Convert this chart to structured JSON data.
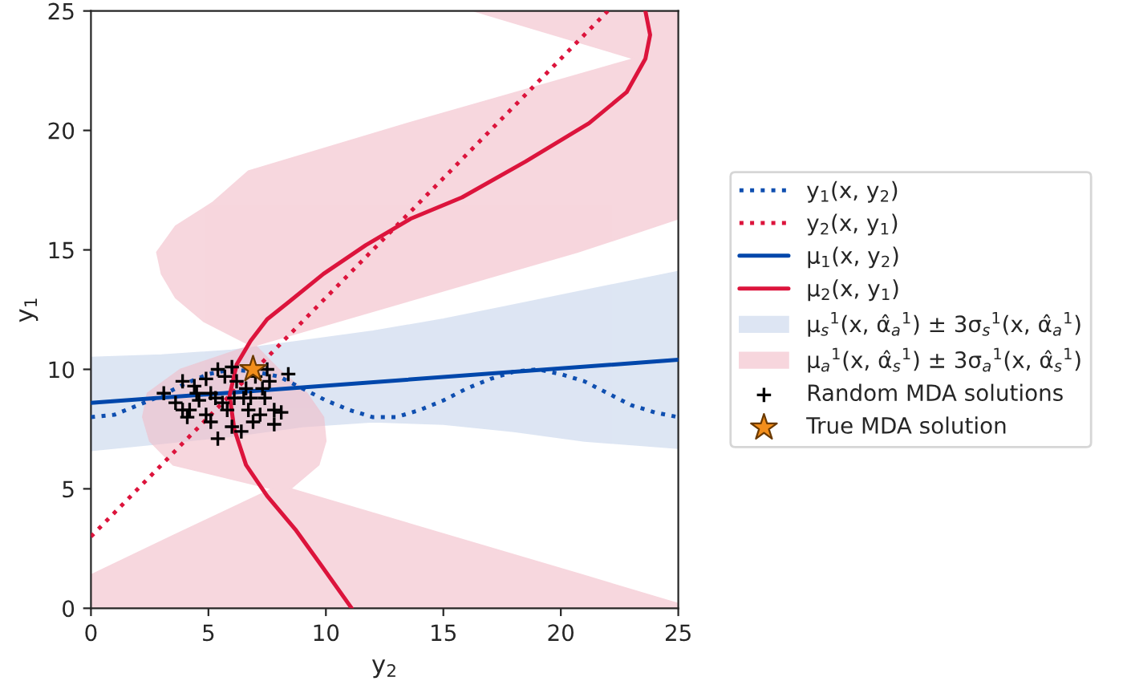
{
  "chart_data": {
    "type": "line",
    "xlabel": "y$_{2}$",
    "ylabel": "y$_{1}$",
    "xlim": [
      0,
      25
    ],
    "ylim": [
      0,
      25
    ],
    "xticks": [
      0,
      5,
      10,
      15,
      20,
      25
    ],
    "yticks": [
      0,
      5,
      10,
      15,
      20,
      25
    ],
    "grid": false,
    "legend": "right",
    "series": [
      {
        "name": "y$_{1}$(x, y$_{2}$)",
        "line_style": "dotted",
        "color": "#0f4fb0",
        "x": [
          0,
          1,
          2,
          3,
          4,
          5,
          6,
          7,
          8,
          9,
          10,
          11,
          12,
          13,
          14,
          15,
          16,
          17,
          18,
          19,
          20,
          21,
          22,
          23,
          24,
          25
        ],
        "values": [
          8.0,
          8.1,
          8.5,
          8.9,
          9.4,
          9.8,
          10.0,
          9.9,
          9.7,
          9.2,
          8.7,
          8.3,
          8.0,
          8.0,
          8.3,
          8.7,
          9.2,
          9.6,
          9.9,
          10.0,
          9.8,
          9.5,
          9.0,
          8.5,
          8.2,
          8.0
        ]
      },
      {
        "name": "y$_{2}$(x, y$_{1}$)",
        "line_style": "dotted",
        "color": "#dc143c",
        "x": [
          0,
          22
        ],
        "values": [
          3.0,
          25.0
        ]
      },
      {
        "name": "μ$_{1}$(x, y$_{2}$)",
        "line_style": "solid",
        "color": "#0047ab",
        "x": [
          0,
          25
        ],
        "values": [
          8.6,
          10.4
        ]
      },
      {
        "name": "μ$_{2}$(x, y$_{1}$)",
        "line_style": "solid",
        "color": "#dc143c",
        "x": [
          11.1,
          9.8,
          8.7,
          7.5,
          6.6,
          6.1,
          5.9,
          6.2,
          6.8,
          7.5,
          8.4,
          9.9,
          11.7,
          13.6,
          15.8,
          18.5,
          21.2,
          22.8,
          23.6,
          23.8,
          23.6
        ],
        "values": [
          0.0,
          1.8,
          3.3,
          4.7,
          6.0,
          7.5,
          8.9,
          10.2,
          11.2,
          12.1,
          12.8,
          14.0,
          15.2,
          16.3,
          17.2,
          18.7,
          20.3,
          21.6,
          23.0,
          24.0,
          25.0
        ]
      },
      {
        "name": "μ$_{s}$$^{1}$(x, α̂$_{a}$$^{1}$) ± 3σ$_{s}$$^{1}$(x, α̂$_{a}$$^{1}$)",
        "type": "area",
        "color": "#c7d5ec",
        "x": [
          0,
          3,
          6,
          9,
          12,
          15,
          18,
          21,
          25,
          25,
          21,
          18,
          15,
          12,
          9,
          6,
          3,
          0
        ],
        "values": [
          6.6,
          6.9,
          7.2,
          7.6,
          7.8,
          7.7,
          7.4,
          7.0,
          6.7,
          14.1,
          13.3,
          12.7,
          12.1,
          11.6,
          11.2,
          10.8,
          10.6,
          10.5
        ]
      },
      {
        "name": "μ$_{a}$$^{1}$(x, α̂$_{s}$$^{1}$) ± 3σ$_{a}$$^{1}$(x, α̂$_{s}$$^{1}$)",
        "type": "area",
        "color": "#f2bcc8",
        "x": [
          0,
          0,
          3.4,
          7.7,
          3.5,
          2.5,
          2.2,
          2.4,
          3.8,
          6.8,
          4.8,
          3.6,
          3.0,
          2.8,
          3.6,
          5.2,
          6.7,
          13.5,
          23.1,
          19.7,
          16.3,
          25,
          25,
          20.7,
          17.5,
          14.0,
          10.5,
          7.0,
          8.0,
          9.2,
          9.9,
          10.0,
          9.7,
          8.5,
          15.4,
          20.9,
          25,
          25
        ],
        "values": [
          0,
          1.4,
          3,
          5,
          6,
          7,
          8,
          9,
          10,
          11,
          12,
          13,
          14,
          14.9,
          16,
          17,
          18.3,
          20.3,
          23,
          24,
          25,
          25,
          16.3,
          14.9,
          14,
          13,
          12,
          11,
          10,
          9,
          8,
          7,
          6,
          5,
          3,
          1.4,
          0.2,
          0
        ]
      },
      {
        "name": "Random MDA solutions",
        "type": "scatter",
        "marker": "cross",
        "color": "#000000",
        "x": [
          3.1,
          3.6,
          3.9,
          3.9,
          4.4,
          4.9,
          5.3,
          4.6,
          4.2,
          4.9,
          5.1,
          5.4,
          5.8,
          6.0,
          6.2,
          6.5,
          6.7,
          6.9,
          7.2,
          7.4,
          7.6,
          7.8,
          8.1,
          7.8,
          7.3,
          6.6,
          5.7,
          5.4,
          6.0,
          6.4,
          4.5,
          5.1,
          7.0,
          7.5,
          8.4,
          4.1,
          5.6,
          6.1,
          6.8
        ],
        "values": [
          9.0,
          8.6,
          8.3,
          9.5,
          9.3,
          9.6,
          8.8,
          8.7,
          8.3,
          8.1,
          7.8,
          7.1,
          8.3,
          10.1,
          9.5,
          8.8,
          8.3,
          7.8,
          8.1,
          8.8,
          9.5,
          8.3,
          8.2,
          7.7,
          9.2,
          9.2,
          9.7,
          10.0,
          7.6,
          7.4,
          9.0,
          9.0,
          9.7,
          10.0,
          9.8,
          8.0,
          8.6,
          8.8,
          8.8
        ]
      },
      {
        "name": "True MDA solution",
        "type": "scatter",
        "marker": "star",
        "color": "#f28e1c",
        "x": [
          6.9
        ],
        "values": [
          10.0
        ]
      }
    ]
  }
}
